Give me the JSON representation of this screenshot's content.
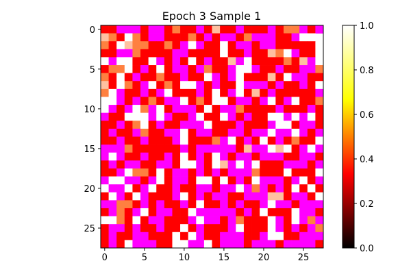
{
  "chart_data": {
    "type": "heatmap",
    "title": "Epoch 3 Sample 1",
    "xlabel": "",
    "ylabel": "",
    "rows": 28,
    "cols": 28,
    "xticks": [
      0,
      5,
      10,
      15,
      20,
      25
    ],
    "yticks": [
      0,
      5,
      10,
      15,
      20,
      25
    ],
    "colorbar": {
      "range": [
        0.0,
        1.0
      ],
      "ticks": [
        "0.0",
        "0.2",
        "0.4",
        "0.6",
        "0.8",
        "1.0"
      ],
      "colormap": "hot",
      "colormap_stops": [
        "#000000",
        "#ff0000",
        "#ffff00",
        "#ffffff"
      ]
    },
    "palette": {
      "r": "#ff0000",
      "m": "#ff00ff",
      "w": "#ffffff",
      "p": "#ff3399",
      "o": "#ff8040",
      "s": "#ffc0a0"
    },
    "grid": "rrmmmrmmrorrmrsrrmrrrmroomrm|sorwormmrrrormrmmrommmrrmww|orwsoorrormwmrrwrmmrmmrrrrrw|rrmmorrrrmmrrrrwrrmrrsowmrrw|wmwwrrwmrmrwrmrrsmwrrrrorsmw|roowrmrwrmmrmorrmwwmrrmrrmmo|orwrmrrorrmrrwmrmwrrrsrwmmrr|srwormwrorwwmrmrrwmmmrmrrmrw|owmrrmrmwrrrmrwrmwrsrmrrrrrm|wwmrmrormmwrorwwrmmrmwrmwrro|wmrmwomwrmmmrwrmmorrrrmrrrmr|mrrwwwmwmrrmwrrwmrmrrwwmwmwr|rrmrowrmrrmmmwrrrmrrrmwwrmmr|rmrrmorrmmwrmmrrmmrmmwmmwmrm|rrmrrmrrrmwrrromwrmrwrmrorrw|mmmorrrrrrmrmmmmmrsmmwswrmwm|mwmrrmrrmrwrmrwmrmmrmmmrrmmr|rmrmmrrmmrwwmrwsmwmwrrrmmmrm|rrmwoorwrmmrmrmrmmmorrrwrrrw|mwwmmrmwrmmrwwrwrmrwmmmrmwrm|wmmwrmwrrmrrmmrmmwmomrmrwrwr|rwmrwmrrrmwrmrmmrrmmmssrmmrw|mmoormrmrrmrwrrmrmrrmwmmrmmm|rmormwrmmrrwmmmmmrmrwrrrwmmr|wworwrmmrrrmwmmrmorrrwmrwmom|rmmrmrrmrrwrmrrrmwrrrwmrmrmo|rmrrmmrrrwrwmrrmmmrrmwwrrmmm|rmrwmmmrrwwmmwrmmmrmmmrmmmmr"
  }
}
